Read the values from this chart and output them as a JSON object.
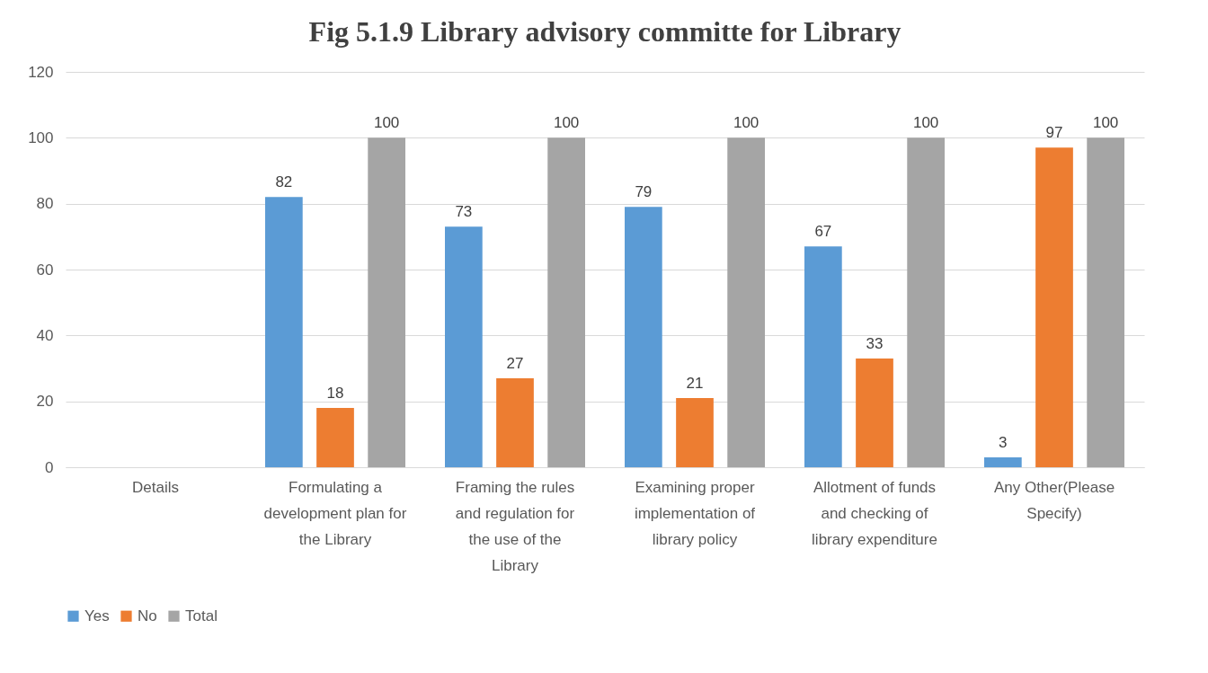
{
  "chart_data": {
    "type": "bar",
    "title": "Fig 5.1.9 Library  advisory  committe for Library",
    "categories": [
      "Details",
      "Formulating a development plan for the Library",
      "Framing the rules and regulation for the use of the Library",
      "Examining proper implementation of library policy",
      "Allotment of funds and checking of library expenditure",
      "Any Other(Please Specify)"
    ],
    "series": [
      {
        "name": "Yes",
        "color": "#5b9bd5",
        "values": [
          null,
          82,
          73,
          79,
          67,
          3
        ]
      },
      {
        "name": "No",
        "color": "#ed7d31",
        "values": [
          null,
          18,
          27,
          21,
          33,
          97
        ]
      },
      {
        "name": "Total",
        "color": "#a5a5a5",
        "values": [
          null,
          100,
          100,
          100,
          100,
          100
        ]
      }
    ],
    "ylim": [
      0,
      120
    ],
    "yticks": [
      0,
      20,
      40,
      60,
      80,
      100,
      120
    ],
    "grid": "y",
    "legend": "bottom",
    "data_labels": true
  }
}
